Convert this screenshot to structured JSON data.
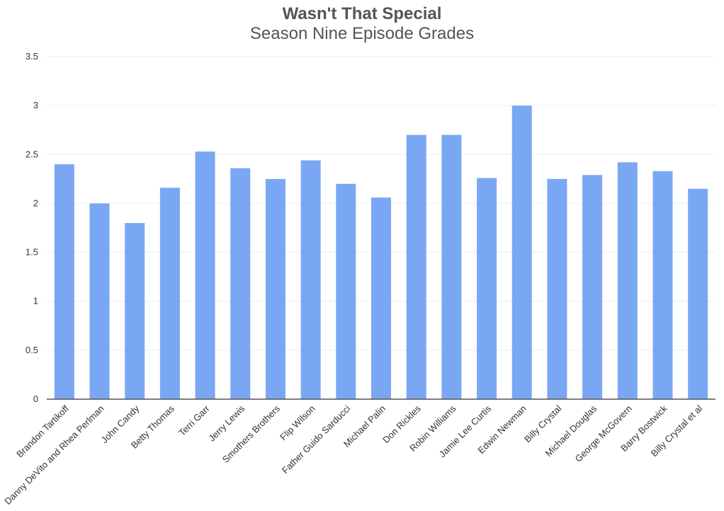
{
  "chart_data": {
    "type": "bar",
    "title": "Wasn't That Special",
    "subtitle": "Season Nine Episode Grades",
    "xlabel": "",
    "ylabel": "",
    "ylim": [
      0,
      3.5
    ],
    "yticks": [
      "0",
      "0.5",
      "1",
      "1.5",
      "2",
      "2.5",
      "3",
      "3.5"
    ],
    "grid": true,
    "legend": "none",
    "bar_color": "#7aa7f3",
    "categories": [
      "Brandon Tartikoff",
      "Danny DeVito and Rhea Perlman",
      "John Candy",
      "Betty Thomas",
      "Terri Garr",
      "Jerry Lewis",
      "Smothers Brothers",
      "Flip Wilson",
      "Father Guido Sarducci",
      "Michael Palin",
      "Don Rickles",
      "Robin Williams",
      "Jamie Lee Curtis",
      "Edwin Newman",
      "Billy Crystal",
      "Michael Douglas",
      "George McGovern",
      "Barry Bostwick",
      "Billy Crystal et al"
    ],
    "values": [
      2.4,
      2.0,
      1.8,
      2.16,
      2.53,
      2.36,
      2.25,
      2.44,
      2.2,
      2.06,
      2.7,
      2.7,
      2.26,
      3.0,
      2.25,
      2.29,
      2.42,
      2.33,
      2.15
    ]
  }
}
